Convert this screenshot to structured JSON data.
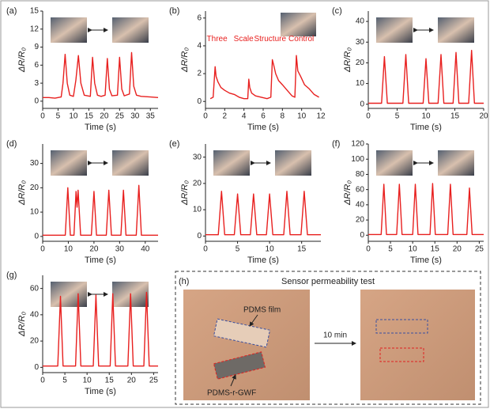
{
  "chart_data": [
    {
      "type": "line",
      "label": "(a)",
      "xlabel": "Time (s)",
      "ylabel": "ΔR/R₀",
      "color": "#e8201f",
      "x": [
        0,
        2,
        4,
        6,
        6.6,
        7.3,
        8.0,
        8.8,
        10,
        10.8,
        11.6,
        12.4,
        13.5,
        15.5,
        16.2,
        16.9,
        17.8,
        19,
        20.3,
        21,
        21.7,
        22.5,
        24.3,
        25,
        25.7,
        26.5,
        28.2,
        28.9,
        29.6,
        30.5,
        32,
        35,
        37.5
      ],
      "values": [
        0.6,
        0.6,
        0.5,
        0.7,
        3,
        7.8,
        3,
        1,
        0.8,
        3.5,
        7.6,
        3,
        1,
        0.8,
        7.3,
        3,
        1,
        0.8,
        1,
        7.1,
        2,
        0.9,
        1,
        7.3,
        2,
        0.9,
        1.2,
        8.1,
        2.5,
        1,
        0.8,
        0.7,
        0.6
      ],
      "xlim": [
        0,
        37.5
      ],
      "xticks": [
        0,
        5,
        10,
        15,
        20,
        25,
        30,
        35
      ],
      "ylim": [
        -1.2,
        15
      ],
      "yticks": [
        0,
        3,
        6,
        9,
        12,
        15
      ]
    },
    {
      "type": "line",
      "label": "(b)",
      "xlabel": "Time (s)",
      "ylabel": "ΔR/R₀",
      "color": "#e8201f",
      "annotations": [
        "Three",
        "Scale",
        "Structure",
        "Control"
      ],
      "x": [
        0.5,
        0.8,
        1.0,
        1.1,
        1.3,
        1.6,
        2.0,
        2.5,
        3.0,
        3.5,
        4.0,
        4.4,
        4.5,
        4.6,
        4.8,
        5.2,
        5.8,
        6.4,
        6.8,
        6.95,
        7.1,
        7.3,
        7.6,
        8.0,
        8.5,
        9.0,
        9.3,
        9.45,
        9.6,
        9.9,
        10.3,
        10.8,
        11.3,
        11.8
      ],
      "values": [
        0.2,
        0.3,
        2.5,
        1.8,
        1.4,
        1.0,
        0.8,
        0.6,
        0.5,
        0.3,
        0.2,
        0.2,
        1.6,
        1.0,
        0.6,
        0.4,
        0.3,
        0.2,
        0.3,
        3.0,
        2.6,
        2.0,
        1.5,
        1.2,
        0.8,
        0.4,
        0.3,
        3.3,
        2.2,
        1.8,
        1.2,
        0.9,
        0.5,
        0.3
      ],
      "xlim": [
        0,
        12
      ],
      "xticks": [
        0,
        2,
        4,
        6,
        8,
        10,
        12
      ],
      "ylim": [
        -0.5,
        6.5
      ],
      "yticks": [
        0,
        2,
        4,
        6
      ]
    },
    {
      "type": "line",
      "label": "(c)",
      "xlabel": "Time (s)",
      "ylabel": "ΔR/R₀",
      "color": "#e8201f",
      "x": [
        0,
        2.3,
        2.8,
        3.3,
        6.0,
        6.5,
        7.0,
        9.5,
        10,
        10.5,
        12.1,
        12.6,
        13.1,
        14.7,
        15.2,
        15.7,
        17.4,
        17.9,
        18.4,
        20
      ],
      "values": [
        0.5,
        0.5,
        23,
        0.5,
        0.5,
        24,
        0.5,
        0.5,
        22,
        0.5,
        0.5,
        24,
        0.5,
        0.5,
        25,
        0.5,
        0.5,
        26,
        0.5,
        0.5
      ],
      "xlim": [
        0,
        20
      ],
      "xticks": [
        0,
        5,
        10,
        15,
        20
      ],
      "ylim": [
        -2,
        45
      ],
      "yticks": [
        0,
        10,
        20,
        30,
        40
      ]
    },
    {
      "type": "line",
      "label": "(d)",
      "xlabel": "Time (s)",
      "ylabel": "ΔR/R₀",
      "color": "#e8201f",
      "x": [
        0,
        8.8,
        9.8,
        10.8,
        12.2,
        13,
        13.4,
        13.8,
        14.8,
        19,
        20,
        21,
        24.8,
        25.8,
        26.8,
        30.5,
        31.5,
        32.5,
        36.5,
        37.5,
        38.5,
        45
      ],
      "values": [
        0.5,
        0.5,
        20,
        0.5,
        0.5,
        18.5,
        12,
        19,
        0.5,
        0.5,
        18.5,
        0.5,
        0.5,
        19,
        0.5,
        0.5,
        19,
        0.5,
        0.5,
        21,
        0.5,
        0.5
      ],
      "xlim": [
        0,
        45
      ],
      "xticks": [
        0,
        10,
        20,
        30,
        40
      ],
      "ylim": [
        -2,
        38
      ],
      "yticks": [
        0,
        10,
        20,
        30
      ]
    },
    {
      "type": "line",
      "label": "(e)",
      "xlabel": "Time (s)",
      "ylabel": "ΔR/R₀",
      "color": "#e8201f",
      "x": [
        0,
        2,
        2.5,
        3,
        4.5,
        5,
        5.5,
        7,
        7.5,
        8,
        9.5,
        10,
        10.5,
        12.2,
        12.7,
        13.2,
        14.9,
        15.4,
        15.9,
        18
      ],
      "values": [
        0.5,
        0.5,
        17,
        0.5,
        0.5,
        16,
        0.5,
        0.5,
        16,
        0.5,
        0.5,
        16,
        0.5,
        0.5,
        17,
        0.5,
        0.5,
        17,
        0.5,
        0.5
      ],
      "xlim": [
        0,
        18
      ],
      "xticks": [
        0,
        5,
        10,
        15
      ],
      "ylim": [
        -2,
        35
      ],
      "yticks": [
        0,
        10,
        20,
        30
      ]
    },
    {
      "type": "line",
      "label": "(f)",
      "xlabel": "Time (s)",
      "ylabel": "ΔR/R₀",
      "color": "#e8201f",
      "x": [
        0,
        2.9,
        3.5,
        4.1,
        6.4,
        7,
        7.6,
        10,
        10.6,
        11.2,
        13.9,
        14.5,
        15.1,
        17.9,
        18.5,
        19.1,
        22.2,
        22.8,
        23.4,
        26
      ],
      "values": [
        1,
        1,
        67,
        1,
        1,
        67,
        1,
        1,
        67,
        1,
        1,
        68,
        1,
        1,
        67,
        1,
        1,
        62,
        1,
        1
      ],
      "xlim": [
        0,
        26
      ],
      "xticks": [
        0,
        5,
        10,
        15,
        20,
        25
      ],
      "ylim": [
        -8,
        120
      ],
      "yticks": [
        0,
        20,
        40,
        60,
        80,
        100,
        120
      ]
    },
    {
      "type": "line",
      "label": "(g)",
      "xlabel": "Time (s)",
      "ylabel": "ΔR/R₀",
      "color": "#e8201f",
      "x": [
        0,
        3.4,
        4,
        4.6,
        7.4,
        8,
        8.6,
        11.4,
        12,
        12.6,
        15.2,
        15.8,
        16.4,
        19.2,
        19.8,
        20.4,
        22.8,
        23.4,
        24,
        26
      ],
      "values": [
        1,
        1,
        54,
        1,
        1,
        56,
        1,
        1,
        55,
        1,
        1,
        56,
        1,
        1,
        56,
        1,
        1,
        57,
        1,
        1
      ],
      "xlim": [
        0,
        26
      ],
      "xticks": [
        0,
        5,
        10,
        15,
        20,
        25
      ],
      "ylim": [
        -4,
        70
      ],
      "yticks": [
        0,
        20,
        40,
        60
      ]
    }
  ],
  "photo_panel": {
    "label": "(h)",
    "title": "Sensor permeability test",
    "film_label": "PDMS film",
    "arrow_label": "10 min",
    "fabric_label": "PDMS-r-GWF"
  }
}
